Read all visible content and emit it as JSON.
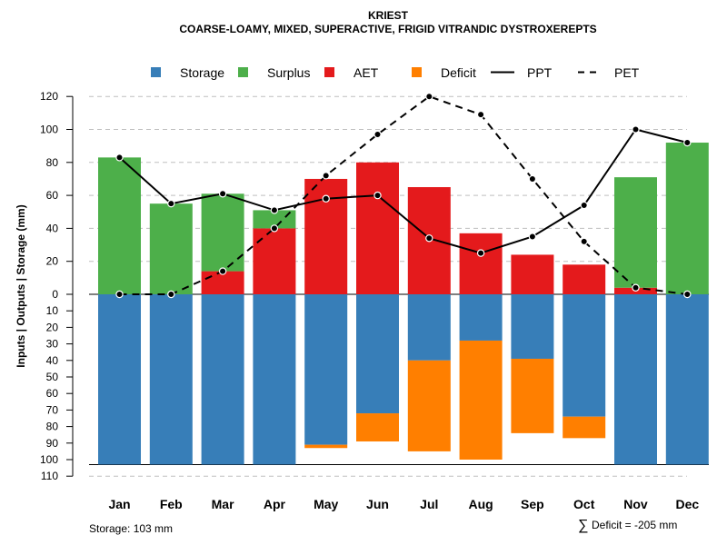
{
  "chart_data": {
    "type": "bar",
    "title": "KRIEST",
    "subtitle": "COARSE-LOAMY, MIXED, SUPERACTIVE, FRIGID VITRANDIC DYSTROXEREPTS",
    "ylabel": "Inputs | Outputs | Storage    (mm)",
    "categories": [
      "Jan",
      "Feb",
      "Mar",
      "Apr",
      "May",
      "Jun",
      "Jul",
      "Aug",
      "Sep",
      "Oct",
      "Nov",
      "Dec"
    ],
    "upper_ylim": [
      0,
      120
    ],
    "upper_ticks": [
      "120",
      "100",
      "80",
      "60",
      "40",
      "20",
      "0"
    ],
    "lower_ylim": [
      0,
      110
    ],
    "lower_ticks": [
      "10",
      "20",
      "30",
      "40",
      "50",
      "60",
      "70",
      "80",
      "90",
      "100",
      "110"
    ],
    "series": [
      {
        "name": "AET",
        "color": "#E41A1C",
        "values": [
          0,
          0,
          14,
          40,
          70,
          80,
          65,
          37,
          24,
          18,
          4,
          0
        ]
      },
      {
        "name": "Surplus",
        "color": "#4DAF4A",
        "values": [
          83,
          55,
          47,
          11,
          0,
          0,
          0,
          0,
          0,
          0,
          67,
          92
        ]
      },
      {
        "name": "Storage",
        "color": "#377EB8",
        "values": [
          103,
          103,
          103,
          103,
          91,
          72,
          40,
          28,
          39,
          74,
          103,
          103
        ]
      },
      {
        "name": "Deficit",
        "color": "#FF7F00",
        "values": [
          0,
          0,
          0,
          0,
          2,
          17,
          55,
          72,
          45,
          13,
          0,
          0
        ]
      },
      {
        "name": "PPT",
        "style": "solid",
        "values": [
          83,
          55,
          61,
          51,
          58,
          60,
          34,
          25,
          35,
          54,
          100,
          92
        ]
      },
      {
        "name": "PET",
        "style": "dashed",
        "values": [
          0,
          0,
          14,
          40,
          72,
          97,
          120,
          109,
          70,
          32,
          4,
          0
        ]
      }
    ],
    "legend": [
      {
        "label": "Storage",
        "kind": "box",
        "color": "#377EB8"
      },
      {
        "label": "Surplus",
        "kind": "box",
        "color": "#4DAF4A"
      },
      {
        "label": "AET",
        "kind": "box",
        "color": "#E41A1C"
      },
      {
        "label": "Deficit",
        "kind": "box",
        "color": "#FF7F00"
      },
      {
        "label": "PPT",
        "kind": "solid"
      },
      {
        "label": "PET",
        "kind": "dashed"
      }
    ],
    "storage_capacity": 103,
    "storage_note": "Storage: 103 mm",
    "deficit_symbol": "∑",
    "deficit_note": "Deficit = -205 mm"
  }
}
